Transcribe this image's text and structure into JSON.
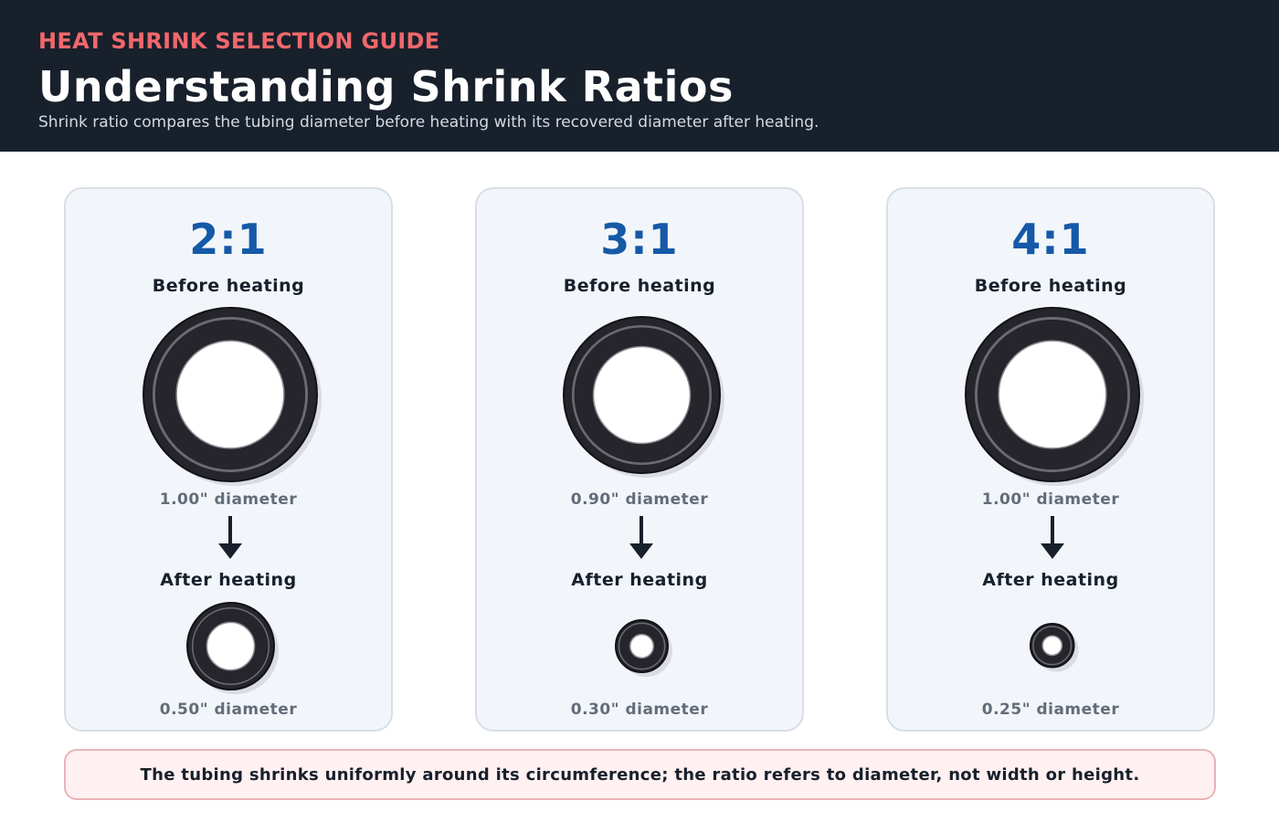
{
  "header": {
    "eyebrow": "HEAT SHRINK SELECTION GUIDE",
    "title": "Understanding Shrink Ratios",
    "subtitle": "Shrink ratio compares the tubing diameter before heating with its recovered diameter after heating."
  },
  "cards": [
    {
      "ratio": "2:1",
      "before_label": "Before heating",
      "before_diameter": "1.00\" diameter",
      "before_diameter_value": 1.0,
      "after_label": "After heating",
      "after_diameter": "0.50\" diameter",
      "after_diameter_value": 0.5
    },
    {
      "ratio": "3:1",
      "before_label": "Before heating",
      "before_diameter": "0.90\" diameter",
      "before_diameter_value": 0.9,
      "after_label": "After heating",
      "after_diameter": "0.30\" diameter",
      "after_diameter_value": 0.3
    },
    {
      "ratio": "4:1",
      "before_label": "Before heating",
      "before_diameter": "1.00\" diameter",
      "before_diameter_value": 1.0,
      "after_label": "After heating",
      "after_diameter": "0.25\" diameter",
      "after_diameter_value": 0.25
    }
  ],
  "note": "The tubing shrinks uniformly around its circumference; the ratio refers to diameter, not width or height.",
  "colors": {
    "header_bg": "#18202b",
    "eyebrow": "#f0686c",
    "ratio": "#1559a7",
    "tube": "#26252b",
    "tube_ring": "#6c6a72",
    "note_bg": "#fff0f1",
    "note_border": "#e8b4b7"
  }
}
